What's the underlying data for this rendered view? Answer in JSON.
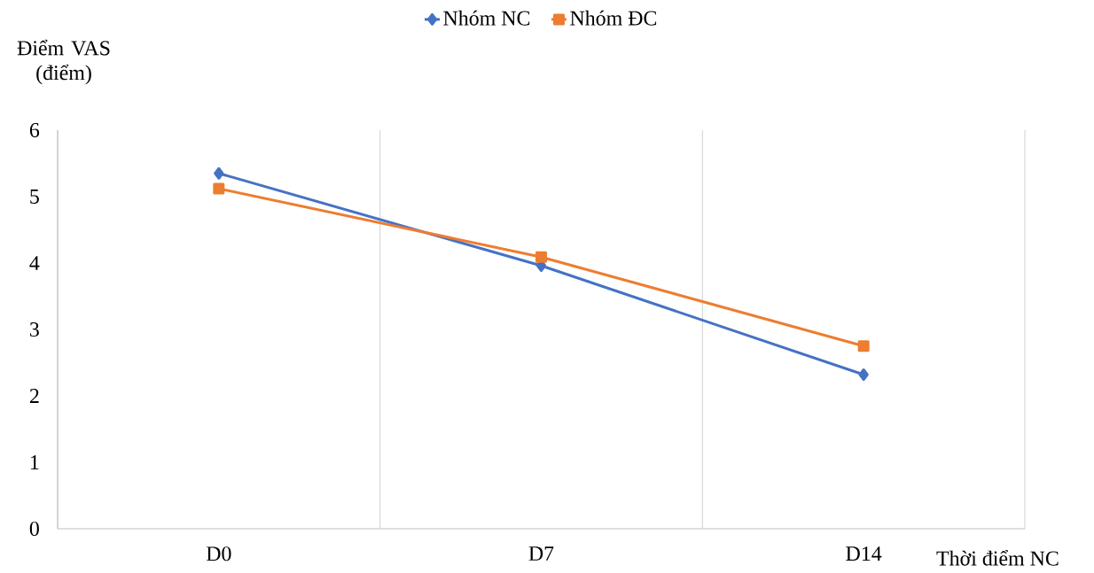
{
  "chart_data": {
    "type": "line",
    "xlabel": "Thời điểm NC",
    "ylabel": "Điểm VAS (điểm)",
    "categories": [
      "D0",
      "D7",
      "D14"
    ],
    "series": [
      {
        "name": "Nhóm NC",
        "color": "#4472c4",
        "marker": "diamond",
        "values": [
          5.35,
          3.96,
          2.32
        ]
      },
      {
        "name": "Nhóm ĐC",
        "color": "#ed7d31",
        "marker": "square",
        "values": [
          5.12,
          4.09,
          2.75
        ]
      }
    ],
    "ylim": [
      0,
      6
    ],
    "yticks": [
      0,
      1,
      2,
      3,
      4,
      5,
      6
    ],
    "grid": "x",
    "legend": "top"
  }
}
